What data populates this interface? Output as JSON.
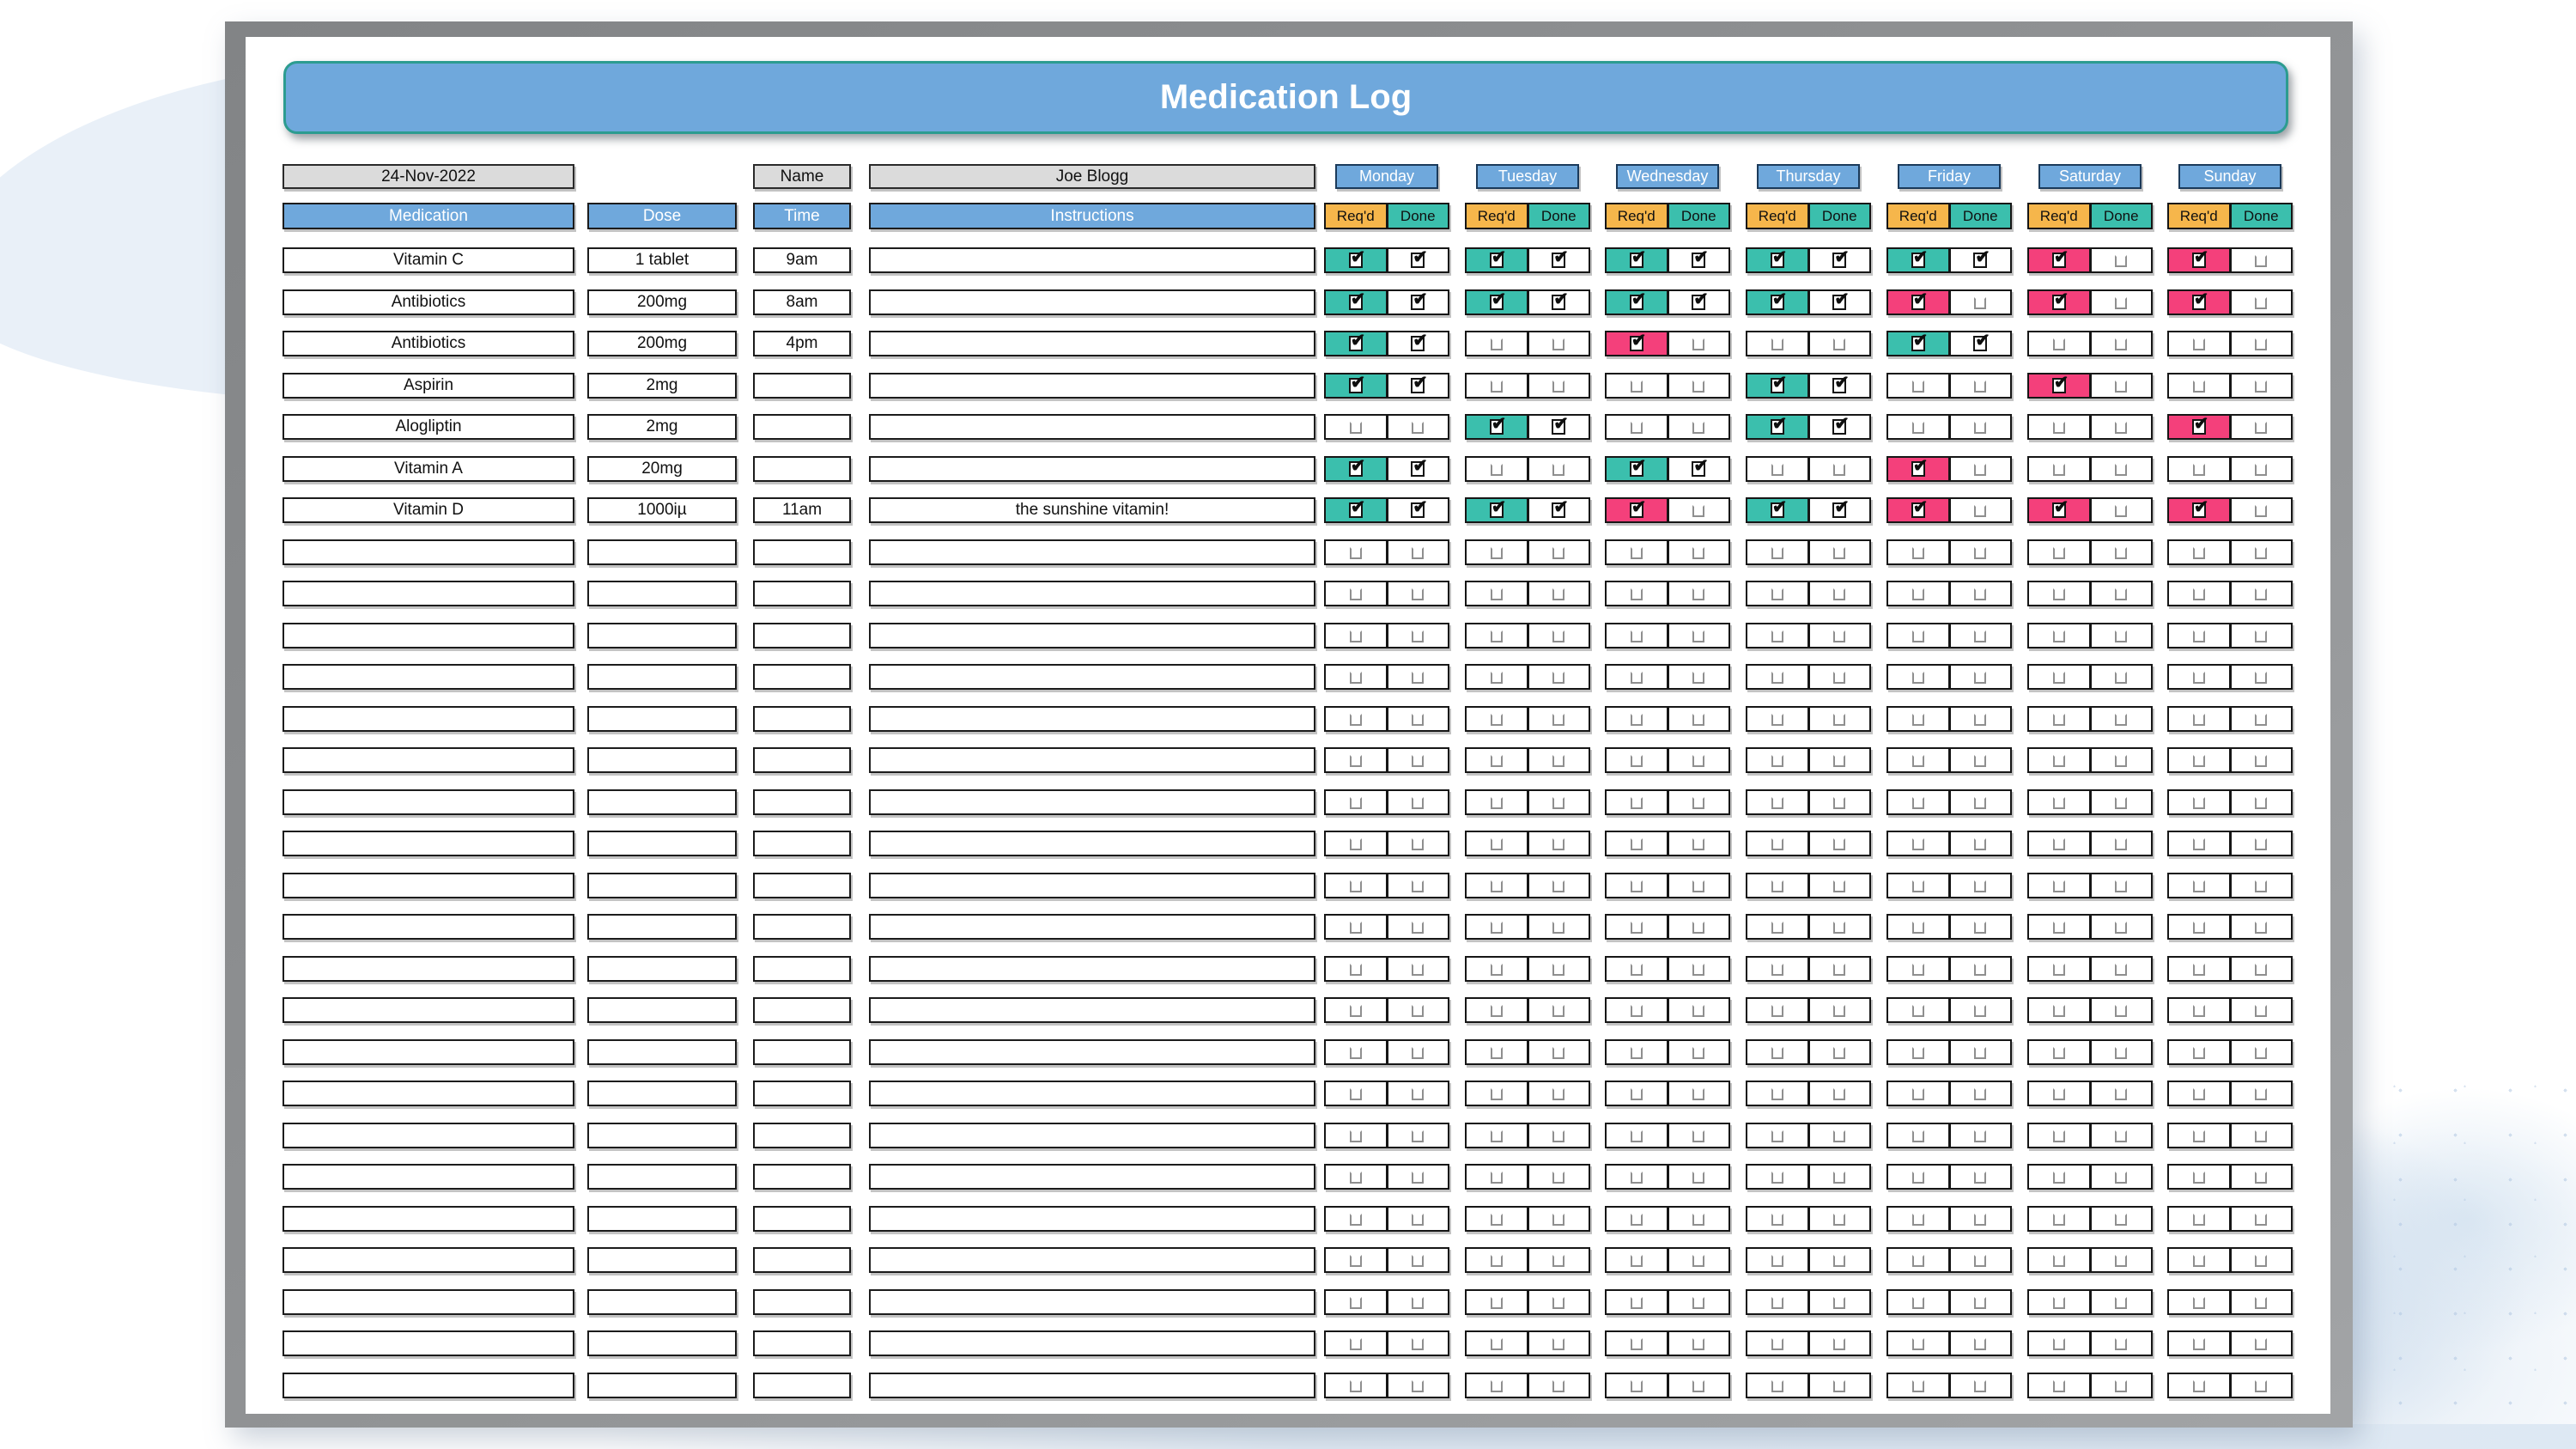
{
  "title": "Medication Log",
  "info_row": {
    "date": "24-Nov-2022",
    "name_label": "Name",
    "name_value": "Joe Blogg"
  },
  "column_headers": {
    "medication": "Medication",
    "dose": "Dose",
    "time": "Time",
    "instructions": "Instructions"
  },
  "day_headers": [
    "Monday",
    "Tuesday",
    "Wednesday",
    "Thursday",
    "Friday",
    "Saturday",
    "Sunday"
  ],
  "subheaders": {
    "required": "Req'd",
    "done": "Done"
  },
  "legend_colors": {
    "header_blue": "#6fa8dc",
    "required_amber": "#f6b64b",
    "done_teal": "#3bbfad",
    "missed_pink": "#f4407b",
    "field_gray": "#dbdbdb",
    "frame_gray": "#8d8f91"
  },
  "medications": [
    {
      "medication": "Vitamin C",
      "dose": "1 tablet",
      "time": "9am",
      "instructions": "",
      "days": [
        "done",
        "done",
        "done",
        "done",
        "done",
        "missed",
        "missed"
      ]
    },
    {
      "medication": "Antibiotics",
      "dose": "200mg",
      "time": "8am",
      "instructions": "",
      "days": [
        "done",
        "done",
        "done",
        "done",
        "missed",
        "missed",
        "missed"
      ]
    },
    {
      "medication": "Antibiotics",
      "dose": "200mg",
      "time": "4pm",
      "instructions": "",
      "days": [
        "done",
        "none",
        "missed",
        "none",
        "done",
        "none",
        "none"
      ]
    },
    {
      "medication": "Aspirin",
      "dose": "2mg",
      "time": "",
      "instructions": "",
      "days": [
        "done",
        "none",
        "none",
        "done",
        "none",
        "missed",
        "none"
      ]
    },
    {
      "medication": "Alogliptin",
      "dose": "2mg",
      "time": "",
      "instructions": "",
      "days": [
        "none",
        "done",
        "none",
        "done",
        "none",
        "none",
        "missed"
      ]
    },
    {
      "medication": "Vitamin A",
      "dose": "20mg",
      "time": "",
      "instructions": "",
      "days": [
        "done",
        "none",
        "done",
        "none",
        "missed",
        "none",
        "none"
      ]
    },
    {
      "medication": "Vitamin D",
      "dose": "1000iµ",
      "time": "11am",
      "instructions": "the sunshine vitamin!",
      "days": [
        "done",
        "done",
        "missed",
        "done",
        "missed",
        "missed",
        "missed"
      ]
    }
  ],
  "empty_row_count": 21
}
